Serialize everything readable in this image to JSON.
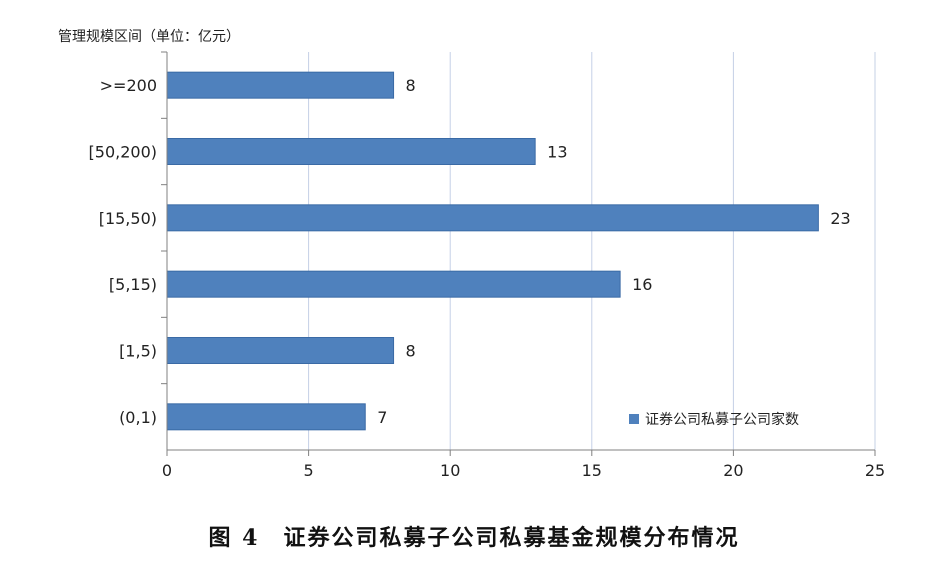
{
  "chart_data": {
    "type": "bar",
    "orientation": "horizontal",
    "categories": [
      ">=200",
      "[50,200)",
      "[15,50)",
      "[5,15)",
      "[1,5)",
      "(0,1)"
    ],
    "series": [
      {
        "name": "证券公司私募子公司家数",
        "values": [
          8,
          13,
          23,
          16,
          8,
          7
        ]
      }
    ],
    "ylabel": "管理规模区间（单位：亿元）",
    "xlabel": "",
    "xlim": [
      0,
      25
    ],
    "x_ticks": [
      0,
      5,
      10,
      15,
      20,
      25
    ],
    "grid": true,
    "legend": "bottom-right",
    "data_labels": true
  },
  "caption": "图 4　证券公司私募子公司私募基金规模分布情况",
  "colors": {
    "bar": "#4f81bd",
    "bar_edge": "#3a6aa5",
    "grid": "#c5d0e6",
    "axis": "#808080",
    "text": "#222222"
  }
}
